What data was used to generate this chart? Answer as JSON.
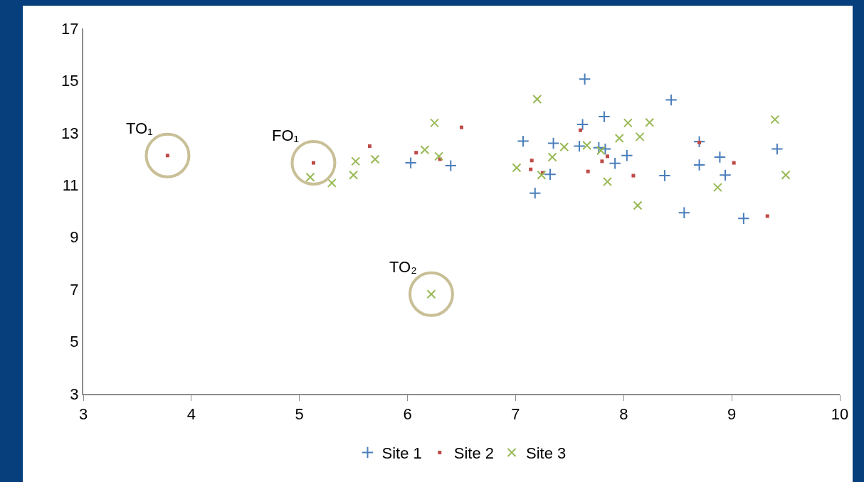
{
  "chart_data": {
    "type": "scatter",
    "xlim": [
      3,
      10
    ],
    "xticks": [
      3,
      4,
      5,
      6,
      7,
      8,
      9,
      10
    ],
    "ylim": [
      3,
      17
    ],
    "yticks": [
      3,
      5,
      7,
      9,
      11,
      13,
      15,
      17
    ],
    "grid": false,
    "legend": "bottom",
    "series": [
      {
        "name": "Site 1",
        "color": "#4a7ebb",
        "marker": "cross",
        "x": [
          6.03,
          6.4,
          7.07,
          7.18,
          7.35,
          7.32,
          7.62,
          7.64,
          7.59,
          7.82,
          7.77,
          7.83,
          7.92,
          8.03,
          8.38,
          8.44,
          8.56,
          8.7,
          8.7,
          8.89,
          8.94,
          9.11,
          9.42
        ],
        "values": [
          11.85,
          11.74,
          12.68,
          10.69,
          12.6,
          11.41,
          13.32,
          15.06,
          12.49,
          13.62,
          12.43,
          12.38,
          11.83,
          12.13,
          11.36,
          14.26,
          9.94,
          12.66,
          11.77,
          12.07,
          11.38,
          9.72,
          12.38
        ]
      },
      {
        "name": "Site 2",
        "color": "#be4b48",
        "marker": "square",
        "x": [
          3.78,
          5.13,
          5.65,
          6.08,
          6.3,
          6.5,
          7.15,
          7.14,
          7.25,
          7.6,
          7.85,
          7.8,
          7.67,
          8.09,
          8.7,
          9.02,
          9.33
        ],
        "values": [
          12.13,
          11.85,
          12.49,
          12.24,
          11.99,
          13.21,
          11.94,
          11.6,
          11.47,
          13.1,
          12.1,
          11.91,
          11.52,
          11.36,
          12.63,
          11.85,
          9.81
        ]
      },
      {
        "name": "Site 3",
        "color": "#98b954",
        "marker": "x",
        "x": [
          6.22,
          5.1,
          5.3,
          5.5,
          5.52,
          5.7,
          6.16,
          6.29,
          6.25,
          7.2,
          7.01,
          7.45,
          7.34,
          7.24,
          7.66,
          7.79,
          8.04,
          8.24,
          7.96,
          8.15,
          7.85,
          8.13,
          9.4,
          9.5,
          8.87
        ],
        "values": [
          6.82,
          11.3,
          11.08,
          11.38,
          11.91,
          11.99,
          12.35,
          12.1,
          13.38,
          14.29,
          11.66,
          12.46,
          12.07,
          11.38,
          12.52,
          12.32,
          13.38,
          13.4,
          12.79,
          12.85,
          11.13,
          10.22,
          13.51,
          11.38,
          10.91
        ]
      }
    ],
    "annotations": [
      {
        "text": "TO₁",
        "x": 3.78,
        "y": 12.13
      },
      {
        "text": "FO₁",
        "x": 5.13,
        "y": 11.85
      },
      {
        "text": "TO₂",
        "x": 6.22,
        "y": 6.82
      }
    ]
  }
}
